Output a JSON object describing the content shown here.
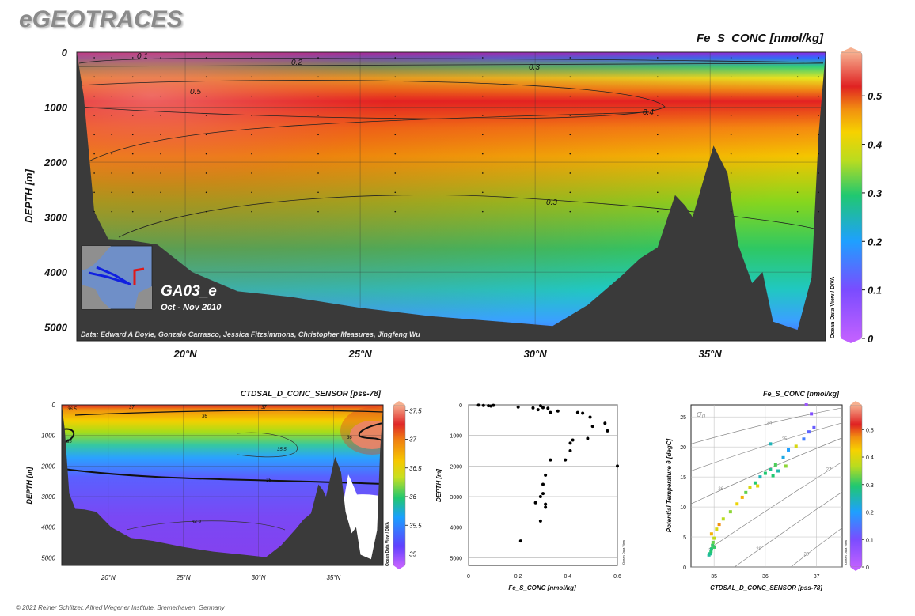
{
  "brand": "eGEOTRACES",
  "copyright": "© 2021 Reiner Schlitzer, Alfred Wegener Institute, Bremerhaven, Germany",
  "chart_data": [
    {
      "id": "main-section",
      "type": "heatmap",
      "title": "Fe_S_CONC [nmol/kg]",
      "ylabel": "DEPTH [m]",
      "x_ticks": [
        "20°N",
        "25°N",
        "30°N",
        "35°N"
      ],
      "x_tick_values": [
        20,
        25,
        30,
        35
      ],
      "xlim": [
        16.9,
        38.3
      ],
      "y_ticks": [
        "0",
        "1000",
        "2000",
        "3000",
        "4000",
        "5000"
      ],
      "y_tick_values": [
        0,
        1000,
        2000,
        3000,
        4000,
        5000
      ],
      "ylim": [
        0,
        5250
      ],
      "colorbar": {
        "ticks": [
          "0",
          "0.1",
          "0.2",
          "0.3",
          "0.4",
          "0.5"
        ],
        "tick_values": [
          0,
          0.1,
          0.2,
          0.3,
          0.4,
          0.5
        ],
        "range": [
          0,
          0.59
        ]
      },
      "contour_labels": [
        "0.1",
        "0.2",
        "0.3",
        "0.5",
        "0.4",
        "0.3"
      ],
      "section_name": "GA03_e",
      "cruise_dates": "Oct - Nov 2010",
      "credits": "Data: Edward A Boyle, Gonzalo Carrasco, Jessica Fitzsimmons, Christopher Measures, Jingfeng Wu",
      "side_label": "Ocean Data View / DIVA",
      "profiles_latitude": [
        17.4,
        17.9,
        18.5,
        19.3,
        20.6,
        21.9,
        23.8,
        26.0,
        28.5,
        31.0,
        33.5,
        35.6,
        37.5,
        38.1
      ],
      "bottom_depth": [
        [
          16.9,
          0
        ],
        [
          17.1,
          800
        ],
        [
          17.4,
          2900
        ],
        [
          17.8,
          3400
        ],
        [
          18.4,
          3420
        ],
        [
          19.2,
          3500
        ],
        [
          20.2,
          4000
        ],
        [
          21.5,
          4350
        ],
        [
          23,
          4450
        ],
        [
          25,
          4650
        ],
        [
          27,
          4800
        ],
        [
          29,
          4900
        ],
        [
          30.5,
          4980
        ],
        [
          31.5,
          4600
        ],
        [
          32.5,
          4050
        ],
        [
          33,
          3750
        ],
        [
          33.5,
          3550
        ],
        [
          34,
          2600
        ],
        [
          34.3,
          2800
        ],
        [
          34.5,
          3000
        ],
        [
          35.1,
          1700
        ],
        [
          35.5,
          2200
        ],
        [
          35.8,
          3500
        ],
        [
          36.2,
          4200
        ],
        [
          36.5,
          4000
        ],
        [
          36.8,
          4900
        ],
        [
          37.5,
          5050
        ],
        [
          37.9,
          4100
        ],
        [
          38.1,
          1500
        ],
        [
          38.3,
          0
        ]
      ]
    },
    {
      "id": "salinity-section",
      "type": "heatmap",
      "title": "CTDSAL_D_CONC_SENSOR [pss-78]",
      "ylabel": "DEPTH [m]",
      "x_ticks": [
        "20°N",
        "25°N",
        "30°N",
        "35°N"
      ],
      "x_tick_values": [
        20,
        25,
        30,
        35
      ],
      "xlim": [
        16.9,
        38.3
      ],
      "y_ticks": [
        "0",
        "1000",
        "2000",
        "3000",
        "4000",
        "5000"
      ],
      "y_tick_values": [
        0,
        1000,
        2000,
        3000,
        4000,
        5000
      ],
      "ylim": [
        0,
        5250
      ],
      "colorbar": {
        "ticks": [
          "35",
          "35.5",
          "36",
          "36.5",
          "37",
          "37.5"
        ],
        "tick_values": [
          35,
          35.5,
          36,
          36.5,
          37,
          37.5
        ],
        "range": [
          34.8,
          37.6
        ]
      },
      "contour_labels": [
        "36.5",
        "37",
        "37",
        "36",
        "36",
        "35",
        "35.5",
        "35",
        "34.9"
      ],
      "side_label": "Ocean Data View / DIVA"
    },
    {
      "id": "fe-profile",
      "type": "scatter",
      "xlabel": "Fe_S_CONC [nmol/kg]",
      "ylabel": "DEPTH [m]",
      "x_ticks": [
        "0",
        "0.2",
        "0.4",
        "0.6"
      ],
      "x_tick_values": [
        0,
        0.2,
        0.4,
        0.6
      ],
      "xlim": [
        0,
        0.6
      ],
      "y_ticks": [
        "0",
        "1000",
        "2000",
        "3000",
        "4000",
        "5000"
      ],
      "y_tick_values": [
        0,
        1000,
        2000,
        3000,
        4000,
        5000
      ],
      "ylim": [
        0,
        5250
      ],
      "side_label": "Ocean Data View",
      "points": [
        [
          0.04,
          10
        ],
        [
          0.06,
          20
        ],
        [
          0.08,
          30
        ],
        [
          0.1,
          15
        ],
        [
          0.09,
          40
        ],
        [
          0.2,
          70
        ],
        [
          0.26,
          100
        ],
        [
          0.29,
          30
        ],
        [
          0.3,
          90
        ],
        [
          0.32,
          110
        ],
        [
          0.28,
          160
        ],
        [
          0.33,
          250
        ],
        [
          0.36,
          200
        ],
        [
          0.44,
          250
        ],
        [
          0.46,
          270
        ],
        [
          0.49,
          400
        ],
        [
          0.55,
          600
        ],
        [
          0.56,
          850
        ],
        [
          0.61,
          900
        ],
        [
          0.5,
          700
        ],
        [
          0.48,
          1100
        ],
        [
          0.42,
          1150
        ],
        [
          0.41,
          1250
        ],
        [
          0.41,
          1500
        ],
        [
          0.39,
          1800
        ],
        [
          0.33,
          1800
        ],
        [
          0.6,
          2000
        ],
        [
          0.31,
          2300
        ],
        [
          0.3,
          2600
        ],
        [
          0.3,
          2900
        ],
        [
          0.29,
          3000
        ],
        [
          0.27,
          3200
        ],
        [
          0.31,
          3250
        ],
        [
          0.31,
          3350
        ],
        [
          0.29,
          3800
        ],
        [
          0.21,
          4450
        ],
        [
          0.62,
          500
        ]
      ]
    },
    {
      "id": "ts-diagram",
      "type": "scatter",
      "title": "Fe_S_CONC [nmol/kg]",
      "xlabel": "CTDSAL_D_CONC_SENSOR [pss-78]",
      "ylabel": "Potential Temperature θ [degC]",
      "x_ticks": [
        "35",
        "36",
        "37"
      ],
      "x_tick_values": [
        35,
        36,
        37
      ],
      "xlim": [
        34.55,
        37.5
      ],
      "y_ticks": [
        "0",
        "5",
        "10",
        "15",
        "20",
        "25"
      ],
      "y_tick_values": [
        0,
        5,
        10,
        15,
        20,
        25
      ],
      "ylim": [
        0,
        27
      ],
      "isopycnal_symbol": "σ₀",
      "isopycnals": [
        "24",
        "25",
        "26",
        "27",
        "28",
        "29"
      ],
      "colorbar": {
        "ticks": [
          "0",
          "0.1",
          "0.2",
          "0.3",
          "0.4",
          "0.5"
        ],
        "tick_values": [
          0,
          0.1,
          0.2,
          0.3,
          0.4,
          0.5
        ],
        "range": [
          0,
          0.59
        ]
      },
      "side_label": "Ocean Data View",
      "points": [
        [
          34.92,
          2.2,
          0.28
        ],
        [
          34.94,
          2.6,
          0.3
        ],
        [
          34.95,
          3.0,
          0.29
        ],
        [
          34.97,
          3.6,
          0.31
        ],
        [
          34.98,
          4.1,
          0.33
        ],
        [
          35.0,
          4.8,
          0.38
        ],
        [
          34.95,
          5.5,
          0.45
        ],
        [
          35.05,
          6.3,
          0.4
        ],
        [
          35.1,
          7.1,
          0.47
        ],
        [
          35.18,
          8.0,
          0.37
        ],
        [
          35.32,
          9.2,
          0.35
        ],
        [
          35.45,
          10.5,
          0.42
        ],
        [
          35.55,
          11.6,
          0.45
        ],
        [
          35.62,
          12.4,
          0.33
        ],
        [
          35.7,
          13.2,
          0.4
        ],
        [
          35.8,
          14.0,
          0.3
        ],
        [
          35.9,
          15.0,
          0.25
        ],
        [
          36.0,
          15.6,
          0.3
        ],
        [
          36.1,
          16.2,
          0.28
        ],
        [
          36.2,
          17.0,
          0.32
        ],
        [
          36.35,
          18.2,
          0.22
        ],
        [
          36.45,
          19.5,
          0.2
        ],
        [
          36.6,
          20.1,
          0.4
        ],
        [
          36.75,
          21.3,
          0.16
        ],
        [
          36.85,
          22.5,
          0.13
        ],
        [
          36.95,
          23.2,
          0.12
        ],
        [
          36.4,
          16.8,
          0.35
        ],
        [
          36.25,
          16.0,
          0.26
        ],
        [
          35.85,
          13.5,
          0.41
        ],
        [
          36.15,
          15.2,
          0.3
        ],
        [
          34.9,
          2.0,
          0.27
        ],
        [
          35.0,
          3.3,
          0.31
        ],
        [
          36.9,
          25.5,
          0.09
        ],
        [
          36.8,
          27.0,
          0.05
        ],
        [
          36.1,
          20.5,
          0.25
        ]
      ]
    }
  ]
}
